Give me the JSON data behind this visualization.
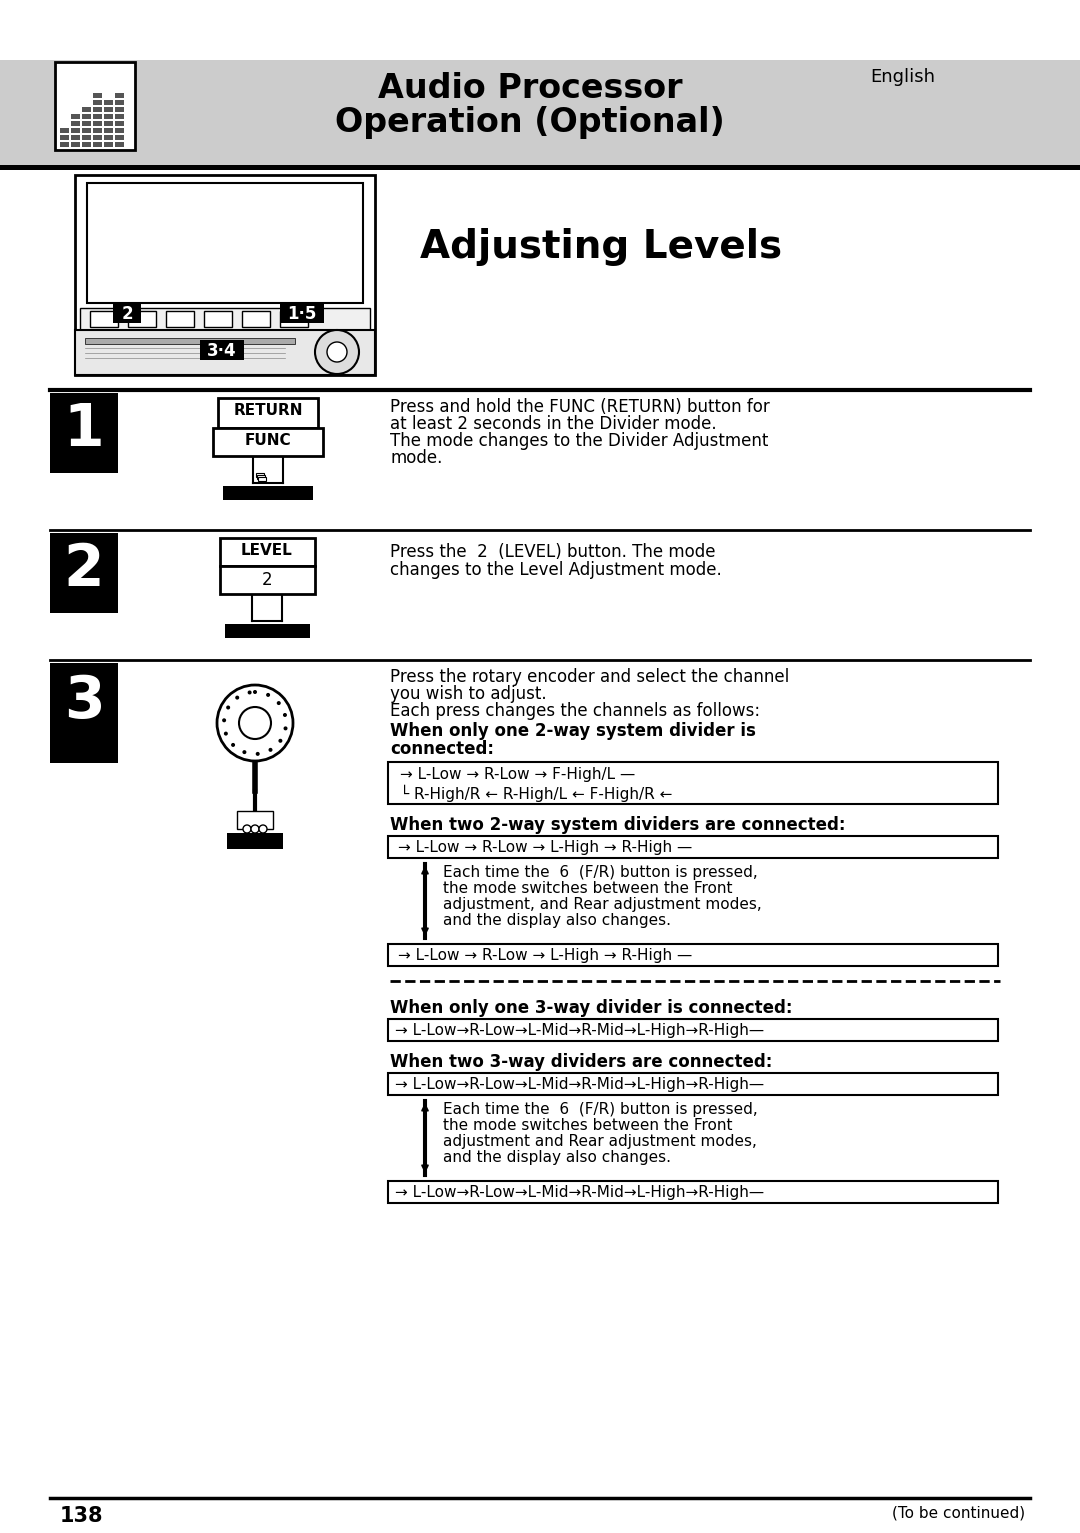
{
  "page_number": "138",
  "bg_color": "#ffffff",
  "header_bg": "#cccccc",
  "header_title_line1": "Audio Processor",
  "header_title_line2": "Operation (Optional)",
  "header_lang": "English",
  "section_title": "Adjusting Levels",
  "step1_text_line1": "Press and hold the FUNC (RETURN) button for",
  "step1_text_line2": "at least 2 seconds in the Divider mode.",
  "step1_text_line3": "The mode changes to the Divider Adjustment",
  "step1_text_line4": "mode.",
  "step2_text_line1": "Press the  2  (LEVEL) button. The mode",
  "step2_text_line2": "changes to the Level Adjustment mode.",
  "step3_intro1": "Press the rotary encoder and select the channel",
  "step3_intro2": "you wish to adjust.",
  "step3_intro3": "Each press changes the channels as follows:",
  "step3_bold1a": "When only one 2-way system divider is",
  "step3_bold1b": "connected:",
  "step3_flow1a": "→ L-Low → R-Low → F-High/L —",
  "step3_flow1b": "└ R-High/R ← R-High/L ← F-High/R ←",
  "step3_bold2": "When two 2-way system dividers are connected:",
  "step3_flow2": "→ L-Low → R-Low → L-High → R-High —",
  "step3_note1_1": "Each time the  6  (F/R) button is pressed,",
  "step3_note1_2": "the mode switches between the Front",
  "step3_note1_3": "adjustment, and Rear adjustment modes,",
  "step3_note1_4": "and the display also changes.",
  "step3_flow2b": "→ L-Low → R-Low → L-High → R-High —",
  "step3_bold3": "When only one 3-way divider is connected:",
  "step3_flow3": "→ L-Low→R-Low→L-Mid→R-Mid→L-High→R-High—",
  "step3_bold4": "When two 3-way dividers are connected:",
  "step3_flow4": "→ L-Low→R-Low→L-Mid→R-Mid→L-High→R-High—",
  "step3_note2_1": "Each time the  6  (F/R) button is pressed,",
  "step3_note2_2": "the mode switches between the Front",
  "step3_note2_3": "adjustment and Rear adjustment modes,",
  "step3_note2_4": "and the display also changes.",
  "step3_flow4b": "→ L-Low→R-Low→L-Mid→R-Mid→L-High→R-High—",
  "footer_text": "(To be continued)"
}
